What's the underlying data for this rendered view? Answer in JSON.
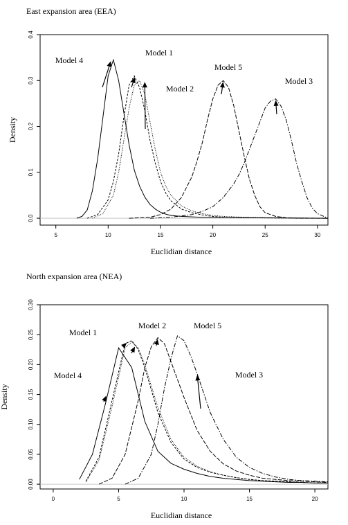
{
  "chart_data": [
    {
      "type": "line",
      "title": "East expansion area (EEA)",
      "xlabel": "Euclidian distance",
      "ylabel": "Density",
      "xlim": [
        3.5,
        31
      ],
      "ylim": [
        -0.015,
        0.4
      ],
      "xticks": [
        5,
        10,
        15,
        20,
        25,
        30
      ],
      "yticks": [
        0.0,
        0.1,
        0.2,
        0.3,
        0.4
      ],
      "ytick_labels": [
        "0.0",
        "0.1",
        "0.2",
        "0.3",
        "0.4"
      ],
      "grid": false,
      "series": [
        {
          "name": "Model 4",
          "dash": "",
          "x": [
            7.0,
            7.5,
            8.0,
            8.5,
            9.0,
            9.5,
            10.0,
            10.5,
            11.0,
            11.5,
            12.0,
            12.5,
            13.0,
            13.5,
            14.0,
            14.5,
            15.0,
            15.5,
            16.0,
            17.0,
            18.0,
            19.0,
            20.0,
            22.0,
            24.0,
            27.0,
            31.0
          ],
          "y": [
            0.0,
            0.004,
            0.018,
            0.06,
            0.13,
            0.22,
            0.31,
            0.345,
            0.3,
            0.23,
            0.16,
            0.105,
            0.07,
            0.046,
            0.03,
            0.02,
            0.013,
            0.009,
            0.006,
            0.004,
            0.003,
            0.002,
            0.002,
            0.0015,
            0.001,
            0.0005,
            0.0
          ]
        },
        {
          "name": "Model 1",
          "dash": "3,2",
          "x": [
            8.0,
            9.0,
            10.0,
            10.5,
            11.0,
            11.5,
            12.0,
            12.5,
            13.0,
            13.5,
            14.0,
            14.5,
            15.0,
            15.5,
            16.0,
            17.0,
            18.0,
            19.0,
            20.0,
            21.0,
            23.0,
            26.0,
            31.0
          ],
          "y": [
            0.0,
            0.008,
            0.04,
            0.08,
            0.14,
            0.22,
            0.29,
            0.31,
            0.285,
            0.235,
            0.17,
            0.12,
            0.08,
            0.055,
            0.038,
            0.02,
            0.012,
            0.007,
            0.004,
            0.002,
            0.001,
            0.0005,
            0.0
          ]
        },
        {
          "name": "Model 2",
          "dash": "1,1.5",
          "x": [
            8.5,
            9.5,
            10.5,
            11.0,
            11.5,
            12.0,
            12.5,
            13.0,
            13.5,
            14.0,
            14.5,
            15.0,
            15.5,
            16.0,
            17.0,
            18.0,
            19.0,
            20.0,
            21.0,
            23.0,
            26.0,
            31.0
          ],
          "y": [
            0.0,
            0.01,
            0.05,
            0.1,
            0.17,
            0.24,
            0.29,
            0.3,
            0.27,
            0.21,
            0.15,
            0.1,
            0.07,
            0.05,
            0.027,
            0.016,
            0.01,
            0.006,
            0.004,
            0.002,
            0.001,
            0.0
          ]
        },
        {
          "name": "Model 5",
          "dash": "6,2",
          "x": [
            12.0,
            14.0,
            15.0,
            16.0,
            17.0,
            18.0,
            18.5,
            19.0,
            19.5,
            20.0,
            20.5,
            21.0,
            21.5,
            22.0,
            22.5,
            23.0,
            23.5,
            24.0,
            24.5,
            25.0,
            26.0,
            27.0,
            28.0,
            31.0
          ],
          "y": [
            0.0,
            0.002,
            0.008,
            0.02,
            0.045,
            0.09,
            0.125,
            0.165,
            0.215,
            0.26,
            0.29,
            0.3,
            0.285,
            0.245,
            0.19,
            0.135,
            0.085,
            0.05,
            0.025,
            0.012,
            0.004,
            0.001,
            0.0,
            0.0
          ]
        },
        {
          "name": "Model 3",
          "dash": "6,2,1.5,2",
          "x": [
            14.0,
            16.0,
            18.0,
            19.0,
            20.0,
            21.0,
            22.0,
            22.5,
            23.0,
            23.5,
            24.0,
            24.5,
            25.0,
            25.5,
            26.0,
            26.5,
            27.0,
            27.5,
            28.0,
            28.5,
            29.0,
            29.5,
            30.0,
            31.0
          ],
          "y": [
            0.0,
            0.002,
            0.008,
            0.015,
            0.025,
            0.045,
            0.075,
            0.095,
            0.12,
            0.15,
            0.18,
            0.21,
            0.24,
            0.255,
            0.26,
            0.245,
            0.215,
            0.17,
            0.12,
            0.08,
            0.045,
            0.022,
            0.01,
            0.0
          ]
        }
      ],
      "annotations": [
        {
          "text": "Model 4",
          "target_x": 10.3,
          "target_y": 0.345
        },
        {
          "text": "Model 1",
          "target_x": 12.6,
          "target_y": 0.31
        },
        {
          "text": "Model 2",
          "target_x": 13.5,
          "target_y": 0.3
        },
        {
          "text": "Model 5",
          "target_x": 21.0,
          "target_y": 0.3
        },
        {
          "text": "Model 3",
          "target_x": 26.0,
          "target_y": 0.26
        }
      ]
    },
    {
      "type": "line",
      "title": "North expansion area (NEA)",
      "xlabel": "Euclidian distance",
      "ylabel": "Density",
      "xlim": [
        -1,
        21
      ],
      "ylim": [
        -0.008,
        0.3
      ],
      "xticks": [
        0,
        5,
        10,
        15,
        20
      ],
      "yticks": [
        0.0,
        0.05,
        0.1,
        0.15,
        0.2,
        0.25,
        0.3
      ],
      "ytick_labels": [
        "0.00",
        "0.05",
        "0.10",
        "0.15",
        "0.20",
        "0.25",
        "0.30"
      ],
      "grid": false,
      "series": [
        {
          "name": "Model 4",
          "dash": "",
          "x": [
            2.0,
            3.0,
            4.0,
            5.0,
            6.0,
            7.0,
            8.0,
            9.0,
            10.0,
            11.0,
            12.0,
            13.0,
            14.0,
            15.0,
            16.0,
            17.0,
            18.0,
            19.0,
            20.0,
            21.0
          ],
          "y": [
            0.008,
            0.05,
            0.135,
            0.228,
            0.195,
            0.105,
            0.055,
            0.035,
            0.025,
            0.018,
            0.013,
            0.01,
            0.008,
            0.006,
            0.005,
            0.004,
            0.003,
            0.003,
            0.002,
            0.002
          ]
        },
        {
          "name": "Model 1",
          "dash": "3,2",
          "x": [
            2.5,
            3.5,
            4.5,
            5.5,
            6.0,
            6.5,
            7.0,
            8.0,
            9.0,
            10.0,
            11.0,
            12.0,
            13.0,
            14.0,
            15.0,
            16.0,
            17.0,
            18.0,
            19.0,
            20.0,
            21.0
          ],
          "y": [
            0.005,
            0.045,
            0.14,
            0.235,
            0.24,
            0.225,
            0.195,
            0.12,
            0.07,
            0.042,
            0.028,
            0.02,
            0.015,
            0.011,
            0.008,
            0.006,
            0.005,
            0.004,
            0.003,
            0.002,
            0.002
          ]
        },
        {
          "name": "Model 2",
          "dash": "1,1.5",
          "x": [
            2.5,
            3.5,
            4.5,
            5.5,
            6.0,
            6.5,
            7.0,
            8.0,
            9.0,
            10.0,
            11.0,
            12.0,
            13.0,
            14.0,
            15.0,
            16.0,
            17.0,
            18.0,
            19.0,
            20.0,
            21.0
          ],
          "y": [
            0.004,
            0.04,
            0.13,
            0.228,
            0.238,
            0.228,
            0.2,
            0.128,
            0.075,
            0.045,
            0.03,
            0.021,
            0.015,
            0.011,
            0.008,
            0.006,
            0.005,
            0.004,
            0.003,
            0.002,
            0.002
          ]
        },
        {
          "name": "Model 5",
          "dash": "6,2",
          "x": [
            3.5,
            4.5,
            5.5,
            6.5,
            7.0,
            7.5,
            8.0,
            8.5,
            9.0,
            10.0,
            11.0,
            12.0,
            13.0,
            14.0,
            15.0,
            16.0,
            17.0,
            18.0,
            19.0,
            20.0,
            21.0
          ],
          "y": [
            0.0,
            0.01,
            0.05,
            0.14,
            0.195,
            0.23,
            0.245,
            0.235,
            0.205,
            0.145,
            0.09,
            0.055,
            0.034,
            0.022,
            0.015,
            0.01,
            0.008,
            0.006,
            0.005,
            0.004,
            0.003
          ]
        },
        {
          "name": "Model 3",
          "dash": "6,2,1.5,2",
          "x": [
            5.5,
            6.5,
            7.5,
            8.0,
            8.5,
            9.0,
            9.5,
            10.0,
            10.5,
            11.0,
            12.0,
            13.0,
            14.0,
            15.0,
            16.0,
            17.0,
            18.0,
            19.0,
            20.0,
            21.0
          ],
          "y": [
            0.0,
            0.01,
            0.05,
            0.1,
            0.16,
            0.21,
            0.248,
            0.24,
            0.215,
            0.185,
            0.12,
            0.075,
            0.045,
            0.028,
            0.018,
            0.012,
            0.008,
            0.006,
            0.005,
            0.004
          ]
        }
      ],
      "annotations": [
        {
          "text": "Model 1",
          "target_x": 5.7,
          "target_y": 0.238
        },
        {
          "text": "Model 2",
          "target_x": 6.3,
          "target_y": 0.232
        },
        {
          "text": "Model 5",
          "target_x": 8.0,
          "target_y": 0.245
        },
        {
          "text": "Model 4",
          "target_x": 4.1,
          "target_y": 0.15
        },
        {
          "text": "Model 3",
          "target_x": 11.0,
          "target_y": 0.185
        }
      ]
    }
  ]
}
